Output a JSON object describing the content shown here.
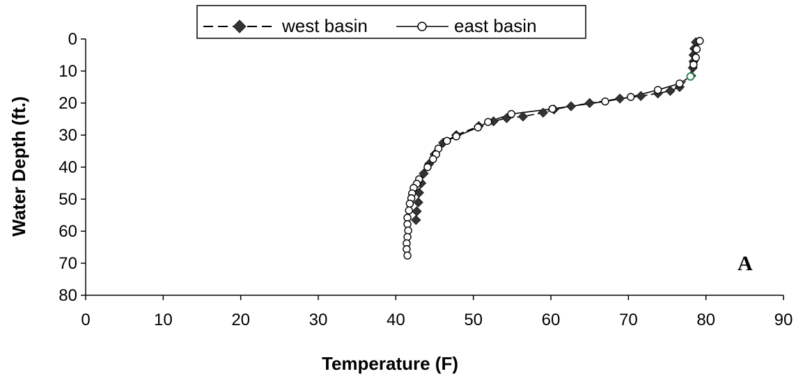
{
  "chart_data": {
    "type": "scatter",
    "xlabel": "Temperature (F)",
    "ylabel": "Water Depth (ft.)",
    "xlim": [
      0,
      90
    ],
    "ylim": [
      0,
      80
    ],
    "y_inverted": true,
    "x_ticks": [
      0,
      10,
      20,
      30,
      40,
      50,
      60,
      70,
      80,
      90
    ],
    "y_ticks": [
      0,
      10,
      20,
      30,
      40,
      50,
      60,
      70,
      80
    ],
    "grid": false,
    "legend_position": "top",
    "annotation": "A",
    "series": [
      {
        "name": "west basin",
        "line_style": "dashed",
        "marker": "filled-diamond",
        "color": "#000000",
        "marker_color": "#333333",
        "points": [
          [
            78.7,
            1.0
          ],
          [
            78.5,
            3.0
          ],
          [
            78.4,
            5.0
          ],
          [
            78.4,
            7.0
          ],
          [
            78.3,
            9.0
          ],
          [
            78.1,
            11.5
          ],
          [
            76.6,
            15.0
          ],
          [
            75.4,
            16.2
          ],
          [
            73.8,
            17.0
          ],
          [
            71.6,
            17.8
          ],
          [
            68.9,
            18.6
          ],
          [
            65.0,
            20.0
          ],
          [
            62.6,
            21.0
          ],
          [
            60.4,
            22.0
          ],
          [
            59.0,
            23.0
          ],
          [
            56.4,
            24.2
          ],
          [
            54.3,
            24.7
          ],
          [
            52.6,
            25.7
          ],
          [
            50.7,
            27.2
          ],
          [
            47.8,
            30.0
          ],
          [
            46.1,
            32.4
          ],
          [
            45.0,
            36.0
          ],
          [
            44.3,
            39.0
          ],
          [
            43.6,
            42.0
          ],
          [
            43.3,
            45.0
          ],
          [
            43.0,
            48.0
          ],
          [
            42.9,
            51.0
          ],
          [
            42.7,
            53.8
          ],
          [
            42.6,
            56.5
          ]
        ]
      },
      {
        "name": "east basin",
        "line_style": "solid",
        "marker": "open-circle",
        "color": "#000000",
        "highlight_color": "#2e8b57",
        "points": [
          [
            79.2,
            0.6
          ],
          [
            78.8,
            3.2
          ],
          [
            78.7,
            5.8
          ],
          [
            78.4,
            8.0
          ],
          [
            78.0,
            11.7
          ],
          [
            76.6,
            13.9
          ],
          [
            73.8,
            15.9
          ],
          [
            70.3,
            18.1
          ],
          [
            67.0,
            19.5
          ],
          [
            60.2,
            21.8
          ],
          [
            54.9,
            23.4
          ],
          [
            51.9,
            25.9
          ],
          [
            50.6,
            27.6
          ],
          [
            47.8,
            30.4
          ],
          [
            46.6,
            31.8
          ],
          [
            45.5,
            34.2
          ],
          [
            45.2,
            36.0
          ],
          [
            44.8,
            37.5
          ],
          [
            44.1,
            40.0
          ],
          [
            43.0,
            43.8
          ],
          [
            42.7,
            45.2
          ],
          [
            42.3,
            46.5
          ],
          [
            42.1,
            48.2
          ],
          [
            42.0,
            49.7
          ],
          [
            41.8,
            51.4
          ],
          [
            41.7,
            53.5
          ],
          [
            41.5,
            55.8
          ],
          [
            41.5,
            57.8
          ],
          [
            41.6,
            59.8
          ],
          [
            41.5,
            61.8
          ],
          [
            41.4,
            63.8
          ],
          [
            41.4,
            65.6
          ],
          [
            41.5,
            67.6
          ]
        ]
      }
    ]
  }
}
